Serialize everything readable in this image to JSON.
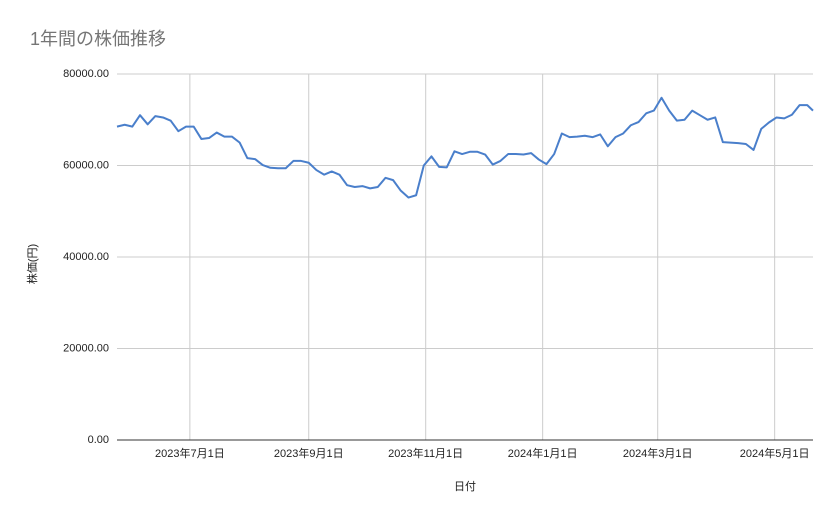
{
  "chart_data": {
    "type": "line",
    "title": "1年間の株価推移",
    "x_label": "日付",
    "y_label": "株価(円)",
    "x": [
      "2023-05-24",
      "2023-05-28",
      "2023-06-01",
      "2023-06-05",
      "2023-06-09",
      "2023-06-13",
      "2023-06-17",
      "2023-06-21",
      "2023-06-25",
      "2023-06-29",
      "2023-07-03",
      "2023-07-07",
      "2023-07-11",
      "2023-07-15",
      "2023-07-19",
      "2023-07-23",
      "2023-07-27",
      "2023-07-31",
      "2023-08-04",
      "2023-08-08",
      "2023-08-12",
      "2023-08-16",
      "2023-08-20",
      "2023-08-24",
      "2023-08-28",
      "2023-09-01",
      "2023-09-05",
      "2023-09-09",
      "2023-09-13",
      "2023-09-17",
      "2023-09-21",
      "2023-09-25",
      "2023-09-29",
      "2023-10-03",
      "2023-10-07",
      "2023-10-11",
      "2023-10-15",
      "2023-10-19",
      "2023-10-23",
      "2023-10-27",
      "2023-10-31",
      "2023-11-04",
      "2023-11-08",
      "2023-11-12",
      "2023-11-16",
      "2023-11-20",
      "2023-11-24",
      "2023-11-28",
      "2023-12-02",
      "2023-12-06",
      "2023-12-10",
      "2023-12-14",
      "2023-12-18",
      "2023-12-22",
      "2023-12-26",
      "2023-12-30",
      "2024-01-03",
      "2024-01-07",
      "2024-01-11",
      "2024-01-15",
      "2024-01-19",
      "2024-01-23",
      "2024-01-27",
      "2024-01-31",
      "2024-02-04",
      "2024-02-08",
      "2024-02-12",
      "2024-02-16",
      "2024-02-20",
      "2024-02-24",
      "2024-02-28",
      "2024-03-03",
      "2024-03-07",
      "2024-03-11",
      "2024-03-15",
      "2024-03-19",
      "2024-03-23",
      "2024-03-27",
      "2024-03-31",
      "2024-04-04",
      "2024-04-08",
      "2024-04-12",
      "2024-04-16",
      "2024-04-20",
      "2024-04-24",
      "2024-04-28",
      "2024-05-02",
      "2024-05-06",
      "2024-05-10",
      "2024-05-14",
      "2024-05-18",
      "2024-05-21"
    ],
    "series": [
      {
        "name": "株価",
        "color": "#4a7fcb",
        "values": [
          68500,
          68900,
          68500,
          71000,
          69000,
          70800,
          70500,
          69800,
          67500,
          68500,
          68500,
          65800,
          66000,
          67200,
          66300,
          66300,
          65000,
          61600,
          61400,
          60100,
          59500,
          59400,
          59400,
          61000,
          61000,
          60600,
          59000,
          58000,
          58700,
          58000,
          55700,
          55300,
          55500,
          55000,
          55300,
          57300,
          56800,
          54500,
          53000,
          53500,
          60000,
          62000,
          59700,
          59600,
          63100,
          62500,
          63000,
          63000,
          62400,
          60200,
          61000,
          62500,
          62500,
          62400,
          62700,
          61300,
          60300,
          62500,
          67000,
          66200,
          66300,
          66500,
          66200,
          66800,
          64200,
          66200,
          67000,
          68800,
          69500,
          71400,
          72000,
          74800,
          72000,
          69800,
          70000,
          72000,
          71000,
          70000,
          70500,
          65100,
          65000,
          64900,
          64700,
          63400,
          68000,
          69400,
          70500,
          70300,
          71100,
          73200,
          73200,
          72000
        ]
      }
    ],
    "xlim": [
      "2023-05-24",
      "2024-05-21"
    ],
    "xticks": [
      {
        "value": "2023-07-01",
        "label": "2023年7月1日"
      },
      {
        "value": "2023-09-01",
        "label": "2023年9月1日"
      },
      {
        "value": "2023-11-01",
        "label": "2023年11月1日"
      },
      {
        "value": "2024-01-01",
        "label": "2024年1月1日"
      },
      {
        "value": "2024-03-01",
        "label": "2024年3月1日"
      },
      {
        "value": "2024-05-01",
        "label": "2024年5月1日"
      }
    ],
    "ylim": [
      0,
      80000
    ],
    "yticks": [
      {
        "value": 0,
        "label": "0.00"
      },
      {
        "value": 20000,
        "label": "20000.00"
      },
      {
        "value": 40000,
        "label": "40000.00"
      },
      {
        "value": 60000,
        "label": "60000.00"
      },
      {
        "value": 80000,
        "label": "80000.00"
      }
    ],
    "grid": true
  }
}
